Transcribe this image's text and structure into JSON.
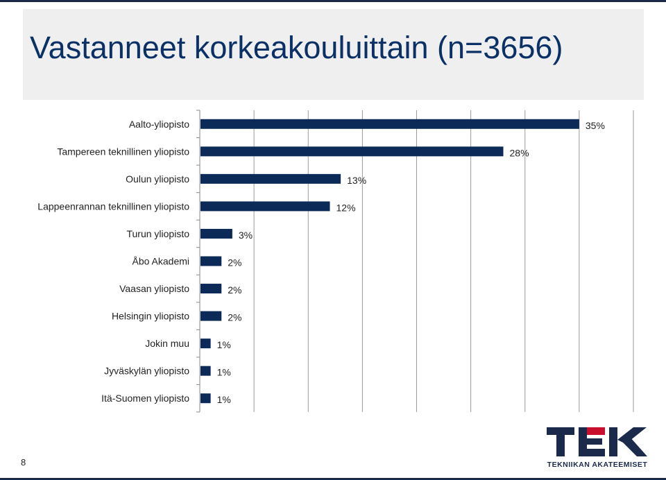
{
  "slide": {
    "title": "Vastanneet korkeakouluittain (n=3656)",
    "page_number": "8"
  },
  "logo": {
    "wordmark": "TEK",
    "tagline": "TEKNIIKAN AKATEEMISET",
    "colors": {
      "navy": "#1b2a4a",
      "red": "#c8102e"
    }
  },
  "colors": {
    "bar": "#0b2a57",
    "gridline": "#9a9a9a"
  },
  "chart_data": {
    "type": "bar",
    "orientation": "horizontal",
    "title": "",
    "xlabel": "",
    "ylabel": "",
    "xlim": [
      0,
      40
    ],
    "grid": true,
    "categories": [
      "Aalto-yliopisto",
      "Tampereen teknillinen yliopisto",
      "Oulun yliopisto",
      "Lappeenrannan teknillinen yliopisto",
      "Turun yliopisto",
      "Åbo Akademi",
      "Vaasan yliopisto",
      "Helsingin yliopisto",
      "Jokin muu",
      "Jyväskylän yliopisto",
      "Itä-Suomen yliopisto"
    ],
    "values": [
      35,
      28,
      13,
      12,
      3,
      2,
      2,
      2,
      1,
      1,
      1
    ],
    "value_labels": [
      "35%",
      "28%",
      "13%",
      "12%",
      "3%",
      "2%",
      "2%",
      "2%",
      "1%",
      "1%",
      "1%"
    ]
  }
}
